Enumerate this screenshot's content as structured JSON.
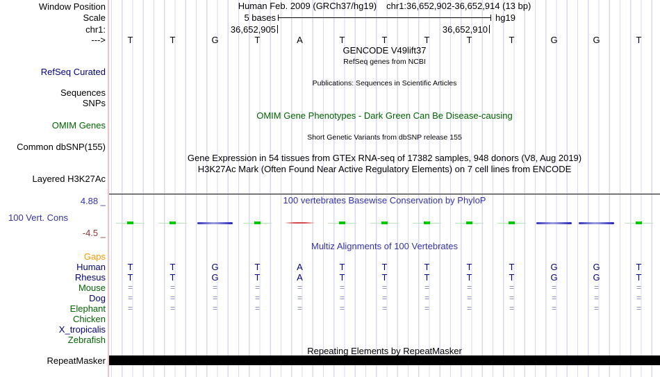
{
  "header": {
    "window_position_label": "Window Position",
    "assembly_title": "Human Feb. 2009 (GRCh37/hg19)",
    "position_title": "chr1:36,652,902-36,652,914 (13 bp)",
    "scale_label": "Scale",
    "scale_value": "5 bases",
    "genome_short": "hg19",
    "chrom_label": "chr1:",
    "coord_left_tick": "36,652,905",
    "coord_right_tick": "36,652,910",
    "strand_arrow": "--->"
  },
  "sequence": {
    "bases": [
      "T",
      "T",
      "G",
      "T",
      "A",
      "T",
      "T",
      "T",
      "T",
      "T",
      "G",
      "G",
      "T"
    ]
  },
  "tracks": {
    "gencode": {
      "title": "GENCODE V49lift37",
      "subtitle": "RefSeq genes from NCBI"
    },
    "refseq": {
      "label": "RefSeq Curated"
    },
    "publications": {
      "label_sequences": "Sequences",
      "label_snps": "SNPs",
      "title": "Publications: Sequences in Scientific Articles"
    },
    "omim": {
      "label": "OMIM Genes",
      "title": "OMIM Gene Phenotypes - Dark Green Can Be Disease-causing"
    },
    "dbsnp": {
      "label": "Common dbSNP(155)",
      "title": "Short Genetic Variants from dbSNP release 155"
    },
    "gtex": {
      "title": "Gene Expression in 54 tissues from GTEx RNA-seq of 17382 samples, 948 donors (V8, Aug 2019)"
    },
    "h3k27ac": {
      "label": "Layered H3K27Ac",
      "title": "H3K27Ac Mark (Often Found Near Active Regulatory Elements) on 7 cell lines from ENCODE"
    },
    "phylop": {
      "label": "100 Vert. Cons",
      "title": "100 vertebrates Basewise Conservation by PhyloP",
      "axis_max": "4.88 _",
      "axis_min": "-4.5 _",
      "marks": [
        "green",
        "green",
        "blue",
        "green",
        "red",
        "green",
        "green",
        "green",
        "green",
        "green",
        "blue",
        "blue",
        "green"
      ]
    },
    "multiz": {
      "title": "Multiz Alignments of 100 Vertebrates",
      "equals_symbol": "=",
      "rows": [
        {
          "label": "Gaps",
          "label_color": "#ff9900",
          "cells": "none"
        },
        {
          "label": "Human",
          "label_color": "#000080",
          "cells": "letters"
        },
        {
          "label": "Rhesus",
          "label_color": "#000080",
          "cells": "letters"
        },
        {
          "label": "Mouse",
          "label_color": "#006400",
          "cells": "equals"
        },
        {
          "label": "Dog",
          "label_color": "#000080",
          "cells": "equals"
        },
        {
          "label": "Elephant",
          "label_color": "#006400",
          "cells": "equals"
        },
        {
          "label": "Chicken",
          "label_color": "#006400",
          "cells": "none"
        },
        {
          "label": "X_tropicalis",
          "label_color": "#000080",
          "cells": "none"
        },
        {
          "label": "Zebrafish",
          "label_color": "#006400",
          "cells": "none"
        }
      ]
    },
    "repeatmasker": {
      "label": "RepeatMasker",
      "title": "Repeating Elements by RepeatMasker"
    }
  },
  "colors": {
    "grid_line": "#d9d9f3",
    "label_border_pink": "#fbbfbf",
    "navy": "#000080",
    "title_blue": "#3333aa",
    "dark_green": "#006400",
    "gaps_orange": "#ff9900",
    "axis_min_red": "#993333",
    "mark_green": "#00c800",
    "mark_blue": "#2222bb",
    "mark_red": "#d04848",
    "repeat_bar_black": "#000000"
  }
}
